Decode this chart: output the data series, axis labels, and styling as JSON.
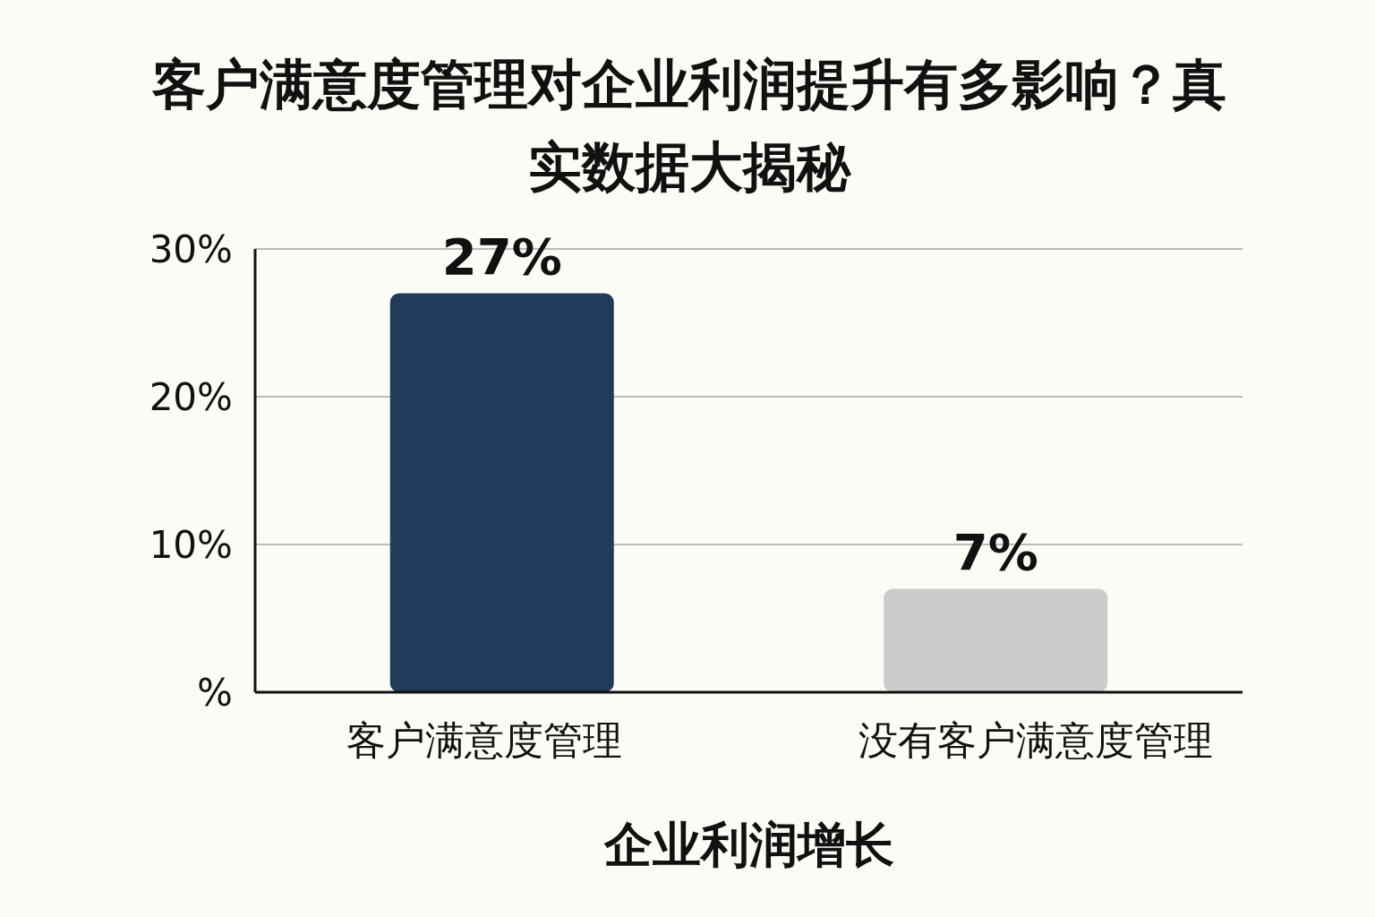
{
  "chart_data": {
    "type": "bar",
    "title": "客户满意度管理对企业利润提升有多影响？真实数据大揭秘",
    "xlabel": "企业利润增长",
    "categories": [
      "客户满意度管理",
      "没有客户满意度管理"
    ],
    "values": [
      27,
      7
    ],
    "colors": [
      "#213b5a",
      "#cccccc"
    ],
    "ylim": [
      0,
      30
    ],
    "yticks": [
      {
        "value": 0,
        "label": "%"
      },
      {
        "value": 10,
        "label": "10%"
      },
      {
        "value": 20,
        "label": "20%"
      },
      {
        "value": 30,
        "label": "30%"
      }
    ],
    "value_labels": [
      "27%",
      "7%"
    ],
    "grid": "y"
  }
}
